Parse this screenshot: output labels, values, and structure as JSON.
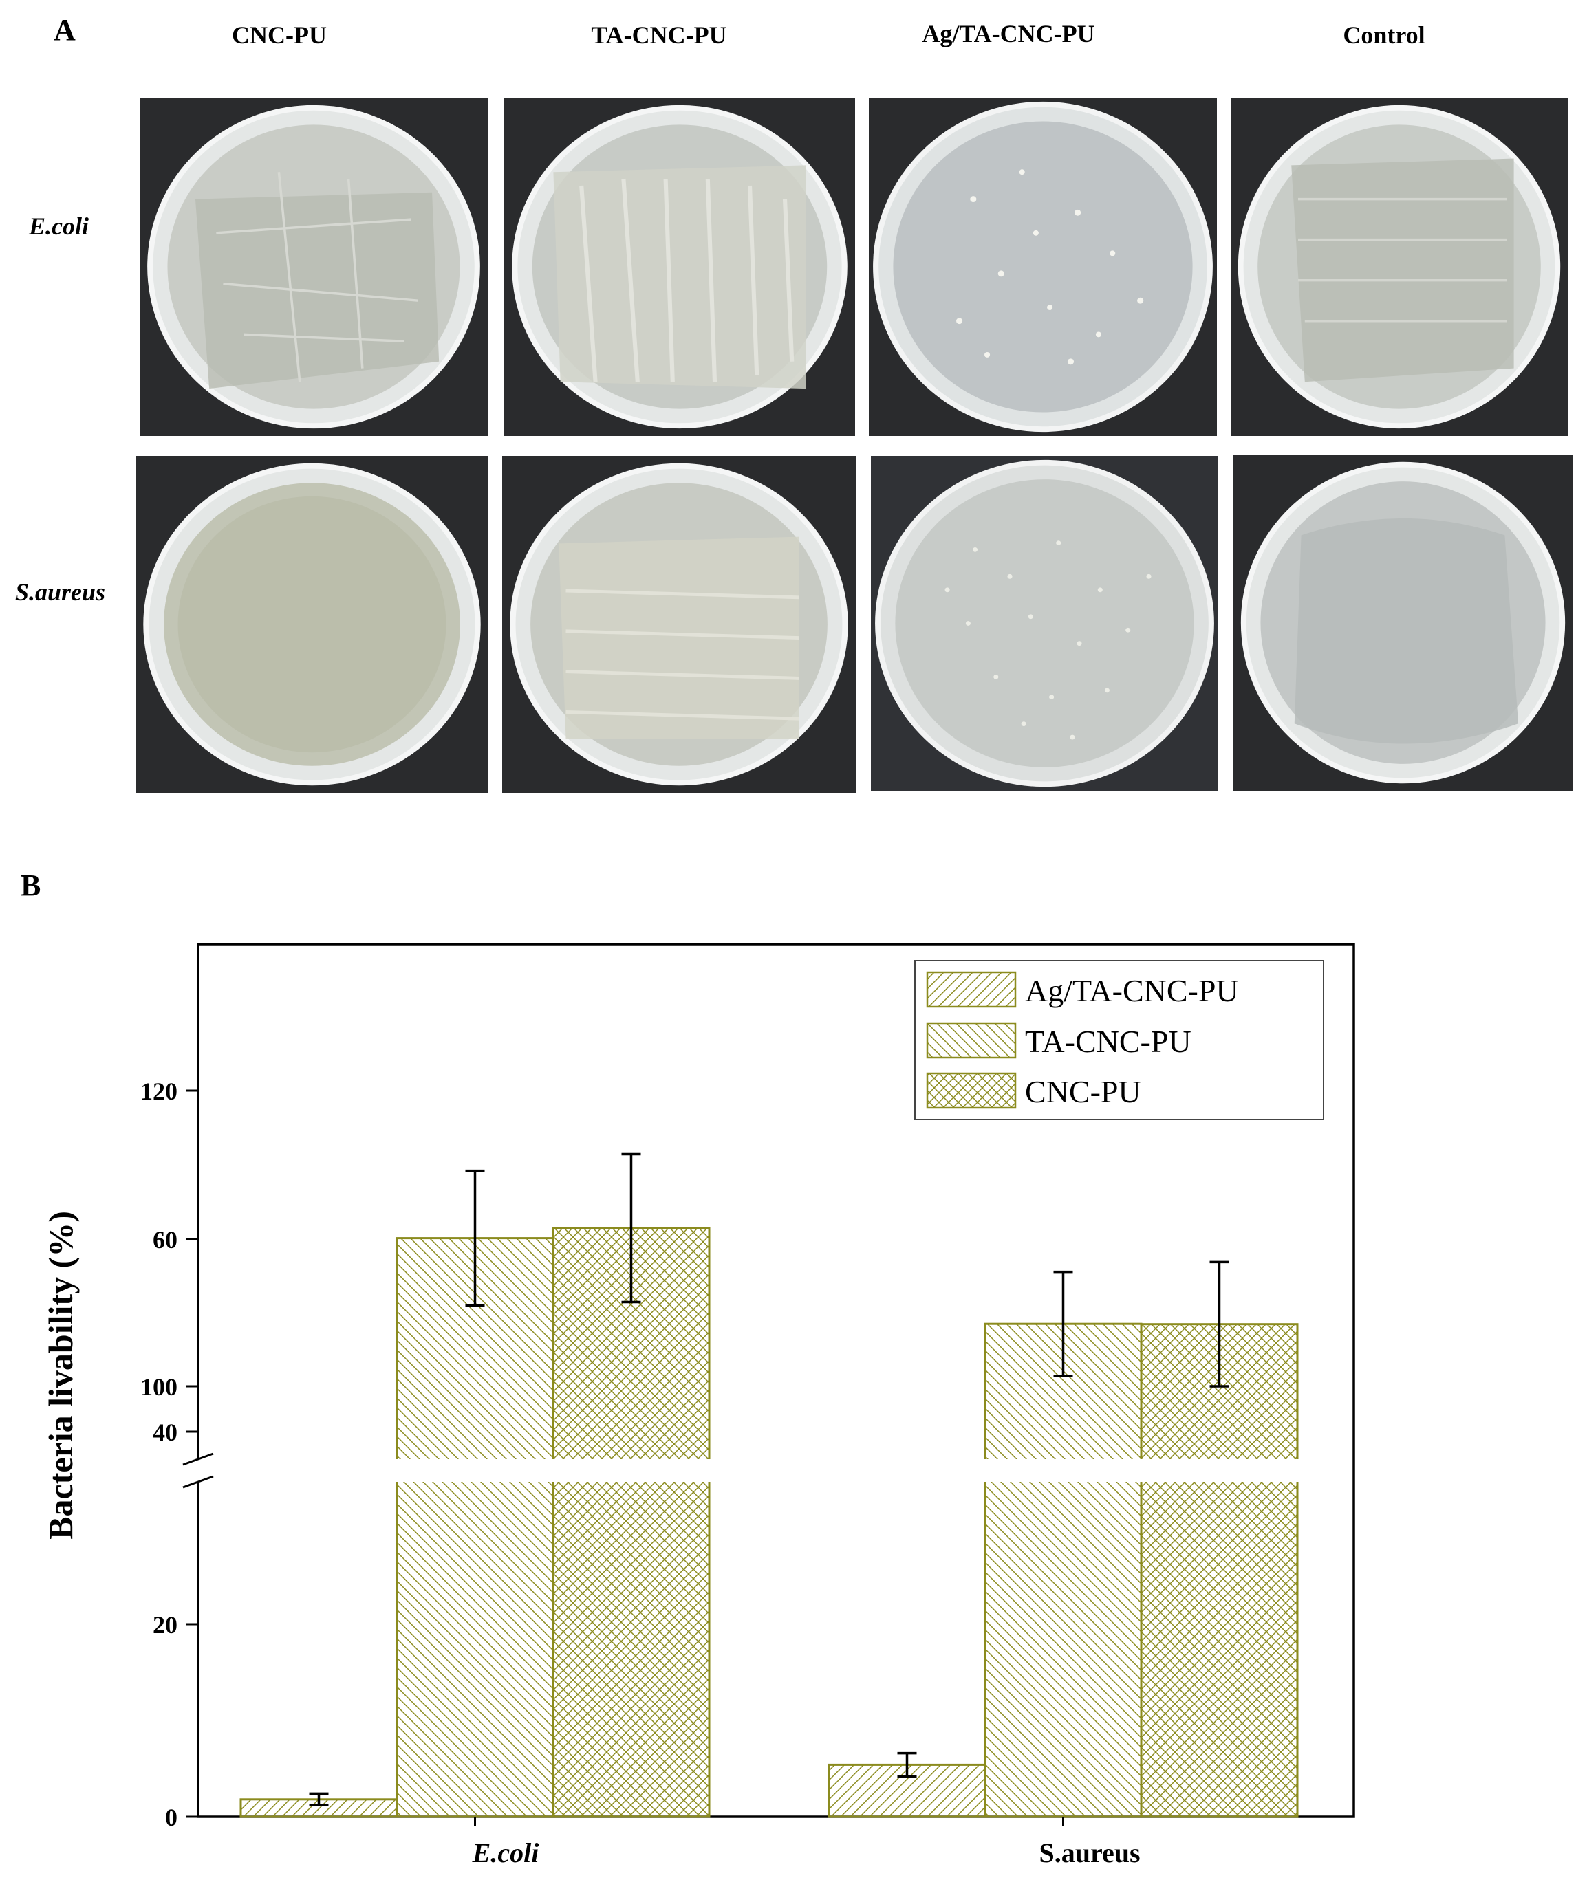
{
  "panel_a": {
    "label": "A",
    "columns": [
      "CNC-PU",
      "TA-CNC-PU",
      "Ag/TA-CNC-PU",
      "Control"
    ],
    "rows": [
      "E.coli",
      "S.aureus"
    ]
  },
  "panel_b": {
    "label": "B"
  },
  "chart_data": {
    "type": "bar",
    "categories": [
      "E.coli",
      "S.aureus"
    ],
    "category_style": [
      "bold-italic",
      "bold"
    ],
    "series": [
      {
        "name": "Ag/TA-CNC-PU",
        "values": [
          1.8,
          5.4
        ],
        "errors": [
          0.6,
          1.2
        ],
        "pattern": "diagonal-up"
      },
      {
        "name": "TA-CNC-PU",
        "values": [
          60.1,
          51.2
        ],
        "errors": [
          7.0,
          5.4
        ],
        "pattern": "diagonal-down"
      },
      {
        "name": "CNC-PU",
        "values": [
          110.7,
          104.2
        ],
        "errors": [
          5.0,
          4.2
        ],
        "pattern": "crosshatch"
      }
    ],
    "ylabel": "Bacteria livability (%)",
    "y_break": {
      "lower": [
        0,
        72
      ],
      "upper": [
        96,
        130
      ]
    },
    "yticks": [
      0,
      20,
      40,
      60,
      100,
      120
    ],
    "legend_position": "top-right",
    "colors": {
      "bar_stroke": "#8b8b1e",
      "axis": "#000000"
    }
  }
}
